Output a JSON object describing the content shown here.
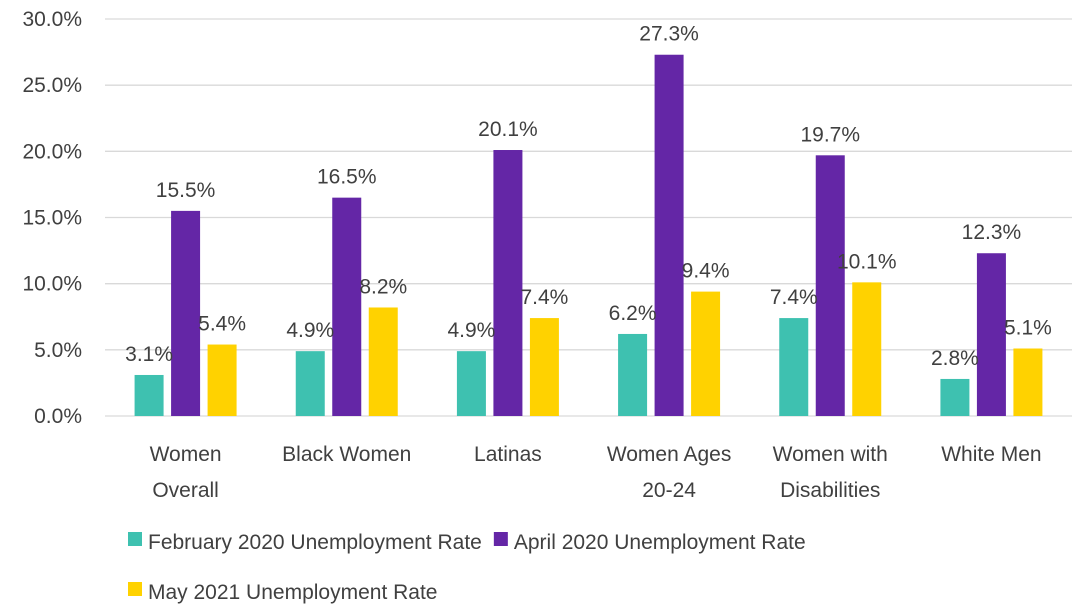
{
  "chart_data": {
    "type": "bar",
    "title": "",
    "xlabel": "",
    "ylabel": "",
    "ylim": [
      0,
      30
    ],
    "yticks": [
      "0.0%",
      "5.0%",
      "10.0%",
      "15.0%",
      "20.0%",
      "25.0%",
      "30.0%"
    ],
    "categories": [
      [
        "Women",
        "Overall"
      ],
      [
        "Black Women"
      ],
      [
        "Latinas"
      ],
      [
        "Women Ages",
        "20-24"
      ],
      [
        "Women with",
        "Disabilities"
      ],
      [
        "White Men"
      ]
    ],
    "series": [
      {
        "name": "February 2020 Unemployment Rate",
        "color": "#3ec1b0",
        "values": [
          3.1,
          4.9,
          4.9,
          6.2,
          7.4,
          2.8
        ],
        "labels": [
          "3.1%",
          "4.9%",
          "4.9%",
          "6.2%",
          "7.4%",
          "2.8%"
        ]
      },
      {
        "name": "April 2020 Unemployment Rate",
        "color": "#6426a6",
        "values": [
          15.5,
          16.5,
          20.1,
          27.3,
          19.7,
          12.3
        ],
        "labels": [
          "15.5%",
          "16.5%",
          "20.1%",
          "27.3%",
          "19.7%",
          "12.3%"
        ]
      },
      {
        "name": "May 2021 Unemployment Rate",
        "color": "#ffd200",
        "values": [
          5.4,
          8.2,
          7.4,
          9.4,
          10.1,
          5.1
        ],
        "labels": [
          "5.4%",
          "8.2%",
          "7.4%",
          "9.4%",
          "10.1%",
          "5.1%"
        ]
      }
    ],
    "grid": true,
    "legend": "bottom"
  }
}
